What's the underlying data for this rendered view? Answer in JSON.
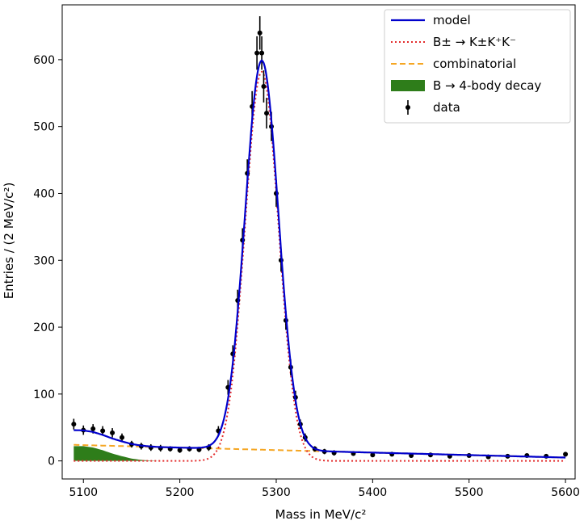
{
  "chart_data": {
    "type": "line",
    "xlabel": "Mass in MeV/c²",
    "ylabel": "Entries / (2 MeV/c²)",
    "xlim": [
      5078,
      5610
    ],
    "ylim": [
      -27,
      682
    ],
    "x_ticks": [
      "5100",
      "5200",
      "5300",
      "5400",
      "5500",
      "5600"
    ],
    "y_ticks": [
      "0",
      "100",
      "200",
      "300",
      "400",
      "500",
      "600"
    ],
    "grid": false,
    "legend_position": "top-right",
    "colors": {
      "model": "#0000cc",
      "signal": "#e32b2b",
      "combinatorial": "#f5a623",
      "four_body": "#2e7d1a",
      "data": "#000000"
    },
    "legend": [
      {
        "key": "model",
        "label": "model",
        "style": "solid-line"
      },
      {
        "key": "signal",
        "label": "B± → K±K⁺K⁻",
        "style": "dotted-line"
      },
      {
        "key": "combinatorial",
        "label": "combinatorial",
        "style": "dashed-line"
      },
      {
        "key": "four_body",
        "label": "B  →  4-body decay",
        "style": "filled"
      },
      {
        "key": "data",
        "label": "data",
        "style": "errorbar"
      }
    ],
    "signal_peak": {
      "mean": 5285,
      "sigma": 17.3,
      "amplitude": 582
    },
    "combinatorial_background": {
      "x": [
        5090,
        5600
      ],
      "y": [
        24,
        5
      ]
    },
    "four_body_background": {
      "x": [
        5090,
        5100,
        5110,
        5120,
        5130,
        5140,
        5150,
        5160,
        5170,
        5180
      ],
      "y": [
        22,
        22,
        20,
        16,
        11,
        7,
        3.5,
        1.5,
        0.5,
        0
      ]
    },
    "data_points": {
      "x": [
        5090,
        5100,
        5110,
        5120,
        5130,
        5140,
        5150,
        5160,
        5170,
        5180,
        5190,
        5200,
        5210,
        5220,
        5230,
        5240,
        5250,
        5255,
        5260,
        5265,
        5270,
        5275,
        5280,
        5283,
        5285,
        5287,
        5290,
        5295,
        5300,
        5305,
        5310,
        5315,
        5320,
        5325,
        5330,
        5340,
        5350,
        5360,
        5380,
        5400,
        5420,
        5440,
        5460,
        5480,
        5500,
        5520,
        5540,
        5560,
        5580,
        5600
      ],
      "y": [
        55,
        46,
        48,
        45,
        42,
        35,
        25,
        22,
        20,
        19,
        18,
        16,
        18,
        17,
        20,
        45,
        110,
        160,
        240,
        330,
        430,
        530,
        610,
        640,
        610,
        560,
        520,
        500,
        400,
        300,
        210,
        140,
        95,
        55,
        35,
        18,
        14,
        12,
        11,
        9,
        10,
        8,
        9,
        7,
        8,
        6,
        7,
        8,
        7,
        10
      ],
      "yerr": [
        8,
        7,
        7,
        7,
        7,
        6,
        5,
        5,
        5,
        5,
        4,
        4,
        4,
        4,
        5,
        7,
        11,
        13,
        16,
        18,
        21,
        23,
        25,
        25,
        25,
        24,
        23,
        22,
        20,
        17,
        14,
        12,
        10,
        7,
        6,
        4,
        4,
        4,
        3,
        3,
        3,
        3,
        3,
        3,
        3,
        3,
        3,
        3,
        3,
        3
      ]
    }
  }
}
